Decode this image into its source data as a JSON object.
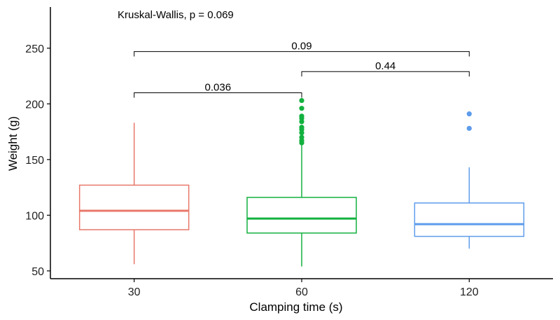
{
  "chart_data": {
    "type": "box",
    "title": "",
    "xlabel": "Clamping time (s)",
    "ylabel": "Weight (g)",
    "ylim": [
      43,
      287
    ],
    "yticks": [
      50,
      100,
      150,
      200,
      250
    ],
    "grid": false,
    "categories": [
      "30",
      "60",
      "120"
    ],
    "colors": [
      "#E8786B",
      "#13B13F",
      "#5E9CEB"
    ],
    "boxes": [
      {
        "category": "30",
        "whisker_low": 56,
        "q1": 87,
        "median": 104,
        "q3": 127,
        "whisker_high": 183,
        "outliers": []
      },
      {
        "category": "60",
        "whisker_low": 54,
        "q1": 84,
        "median": 97,
        "q3": 116,
        "whisker_high": 164,
        "outliers": [
          165,
          167,
          170,
          174,
          177,
          179,
          184,
          187,
          189,
          196,
          203
        ]
      },
      {
        "category": "120",
        "whisker_low": 70,
        "q1": 81,
        "median": 92,
        "q3": 111,
        "whisker_high": 143,
        "outliers": [
          178,
          191
        ]
      }
    ],
    "annotations": {
      "global_test": "Kruskal-Wallis, p = 0.069",
      "comparisons": [
        {
          "from": "30",
          "to": "60",
          "y": 210,
          "label": "0.036"
        },
        {
          "from": "60",
          "to": "120",
          "y": 229,
          "label": "0.44"
        },
        {
          "from": "30",
          "to": "120",
          "y": 247,
          "label": "0.09"
        }
      ]
    }
  }
}
